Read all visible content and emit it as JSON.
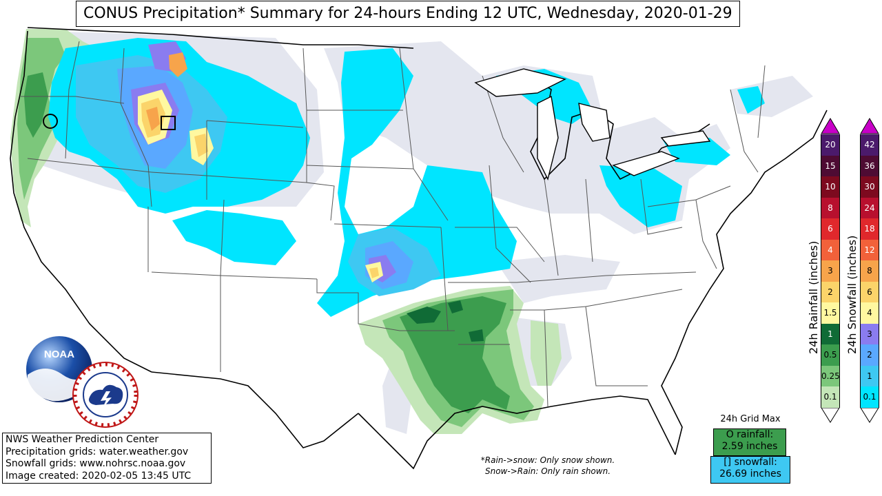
{
  "title": "CONUS Precipitation* Summary for 24-hours Ending 12 UTC, Wednesday, 2020-01-29",
  "info": {
    "line1": "NWS Weather Prediction Center",
    "line2": "Precipitation grids: water.weather.gov",
    "line3": "Snowfall grids: www.nohrsc.noaa.gov",
    "line4": "Image created: 2020-02-05 13:45 UTC"
  },
  "notes": {
    "line1": "*Rain->snow: Only snow shown.",
    "line2": "Snow->Rain: Only rain shown."
  },
  "grid_max": {
    "title": "24h Grid Max",
    "rain_line1": "O rainfall:",
    "rain_line2": "2.59 inches",
    "snow_line1": "[] snowfall:",
    "snow_line2": "26.69 inches"
  },
  "logos": {
    "noaa": "NOAA",
    "nws": "NATIONAL WEATHER SERVICE"
  },
  "rain_legend": {
    "label": "24h Rainfall (inches)",
    "levels": [
      {
        "value": "20",
        "color": "#4b1a6b"
      },
      {
        "value": "15",
        "color": "#4e0b33"
      },
      {
        "value": "10",
        "color": "#7d0a1f"
      },
      {
        "value": "8",
        "color": "#b8102e"
      },
      {
        "value": "6",
        "color": "#e0282c"
      },
      {
        "value": "4",
        "color": "#f2613a"
      },
      {
        "value": "3",
        "color": "#f7a44b"
      },
      {
        "value": "2",
        "color": "#fbd46a"
      },
      {
        "value": "1.5",
        "color": "#fff8a0"
      },
      {
        "value": "1",
        "color": "#106b36"
      },
      {
        "value": "0.5",
        "color": "#3c9d4e"
      },
      {
        "value": "0.25",
        "color": "#7cc77b"
      },
      {
        "value": "0.1",
        "color": "#c4e6b8"
      }
    ]
  },
  "snow_legend": {
    "label": "24h Snowfall (inches)",
    "levels": [
      {
        "value": "42",
        "color": "#4b1a6b"
      },
      {
        "value": "36",
        "color": "#4e0b33"
      },
      {
        "value": "30",
        "color": "#7d0a1f"
      },
      {
        "value": "24",
        "color": "#b8102e"
      },
      {
        "value": "18",
        "color": "#e0282c"
      },
      {
        "value": "12",
        "color": "#f2613a"
      },
      {
        "value": "8",
        "color": "#f7a44b"
      },
      {
        "value": "6",
        "color": "#fbd46a"
      },
      {
        "value": "4",
        "color": "#fff8a0"
      },
      {
        "value": "3",
        "color": "#8a7cf0"
      },
      {
        "value": "2",
        "color": "#5aa8ff"
      },
      {
        "value": "1",
        "color": "#3ec8f2"
      },
      {
        "value": "0.1",
        "color": "#00e5ff"
      }
    ]
  },
  "colors": {
    "trace": "#e4e6ef",
    "snow_light": "#00e5ff",
    "snow_1": "#3ec8f2",
    "snow_2": "#5aa8ff",
    "snow_3": "#8a7cf0",
    "snow_4": "#fff8a0",
    "snow_6": "#fbd46a",
    "snow_8": "#f7a44b",
    "rain_light": "#c4e6b8",
    "rain_025": "#7cc77b",
    "rain_05": "#3c9d4e",
    "rain_1": "#106b36",
    "magenta": "#c800c8"
  }
}
